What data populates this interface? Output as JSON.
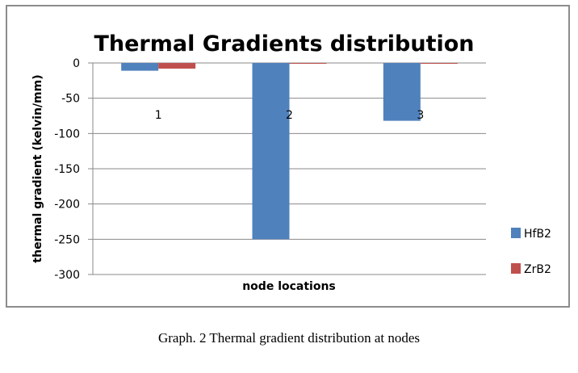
{
  "chart_data": {
    "type": "bar",
    "title": "Thermal Gradients distribution",
    "xlabel": "node locations",
    "ylabel": "thermal gradient  (kelvin/mm)",
    "categories": [
      "1",
      "2",
      "3"
    ],
    "series": [
      {
        "name": "HfB2",
        "values": [
          -11,
          -250,
          -82
        ],
        "color": "#4f81bd"
      },
      {
        "name": "ZrB2",
        "values": [
          -8,
          -1,
          -1
        ],
        "color": "#c0504d"
      }
    ],
    "ylim": [
      -300,
      0
    ],
    "yticks": [
      0,
      -50,
      -100,
      -150,
      -200,
      -250,
      -300
    ],
    "grid": true,
    "legend": "right"
  },
  "caption": "Graph. 2  Thermal gradient distribution at nodes"
}
